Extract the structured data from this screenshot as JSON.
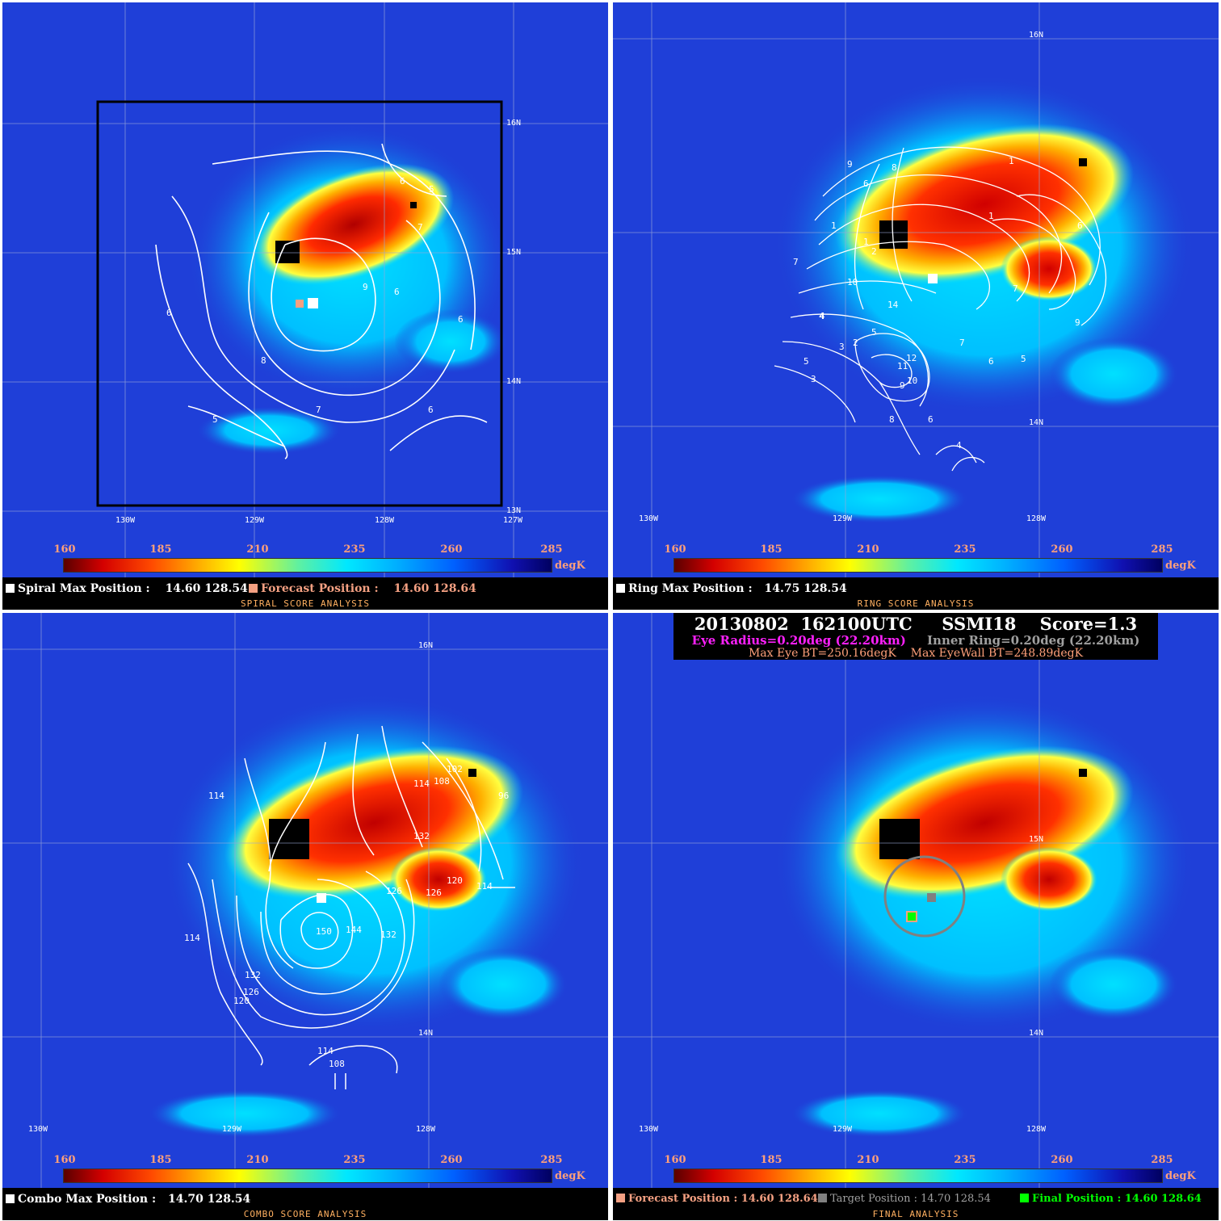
{
  "colorbar": {
    "ticks": [
      "160",
      "185",
      "210",
      "235",
      "260",
      "285"
    ],
    "unit": "degK"
  },
  "panels": {
    "spiral": {
      "title": "SPIRAL SCORE ANALYSIS",
      "lat_labels": [
        "16N",
        "15N",
        "14N",
        "13N"
      ],
      "lon_labels": [
        "130W",
        "129W",
        "128W",
        "127W"
      ],
      "contour_labels": [
        "6",
        "5",
        "7",
        "8",
        "9",
        "6",
        "6",
        "6",
        "8",
        "7",
        "6",
        "5"
      ],
      "max_label": "Spiral Max Position :",
      "max_value": "14.60 128.54",
      "forecast_label": "Forecast Position :",
      "forecast_value": "14.60 128.64",
      "colors": {
        "max": "#ffffff",
        "forecast": "#f4a082"
      }
    },
    "ring": {
      "title": "RING SCORE ANALYSIS",
      "lat_labels": [
        "16N",
        "14N"
      ],
      "lon_labels": [
        "130W",
        "129W",
        "128W"
      ],
      "contour_labels": [
        "9",
        "8",
        "6",
        "1",
        "1",
        "1",
        "7",
        "10",
        "1",
        "2",
        "7",
        "5",
        "4",
        "3",
        "2",
        "5",
        "14",
        "12",
        "10",
        "11",
        "9",
        "8",
        "6",
        "3",
        "4",
        "6",
        "5",
        "9",
        "7",
        "6",
        "4"
      ],
      "max_label": "Ring Max Position :",
      "max_value": "14.75 128.54"
    },
    "combo": {
      "title": "COMBO SCORE ANALYSIS",
      "lat_labels": [
        "16N",
        "14N"
      ],
      "lon_labels": [
        "130W",
        "129W",
        "128W"
      ],
      "contour_labels": [
        "114",
        "102",
        "108",
        "114",
        "96",
        "132",
        "120",
        "126",
        "126",
        "114",
        "150",
        "144",
        "132",
        "114",
        "132",
        "126",
        "120",
        "114",
        "108"
      ],
      "max_label": "Combo Max Position :",
      "max_value": "14.70 128.54"
    },
    "final": {
      "title": "FINAL ANALYSIS",
      "lat_labels": [
        "15N",
        "14N"
      ],
      "lon_labels": [
        "130W",
        "129W",
        "128W"
      ],
      "header": {
        "date": "20130802",
        "time": "162100UTC",
        "sensor": "SSMI18",
        "score": "Score=1.3",
        "eye_radius": "Eye Radius=0.20deg (22.20km)",
        "inner_ring": "Inner Ring=0.20deg (22.20km)",
        "max_eye_bt": "Max Eye BT=250.16degK",
        "max_eyewall_bt": "Max EyeWall BT=248.89degK"
      },
      "forecast_label": "Forecast Position :",
      "forecast_value": "14.60 128.64",
      "target_label": "Target Position :",
      "target_value": "14.70 128.54",
      "final_label": "Final Position :",
      "final_value": "14.60 128.64",
      "colors": {
        "eye": "#ff20ff",
        "inner": "#a0a0a0",
        "forecast": "#f4a082",
        "target": "#808080",
        "final": "#00ff00"
      }
    }
  }
}
